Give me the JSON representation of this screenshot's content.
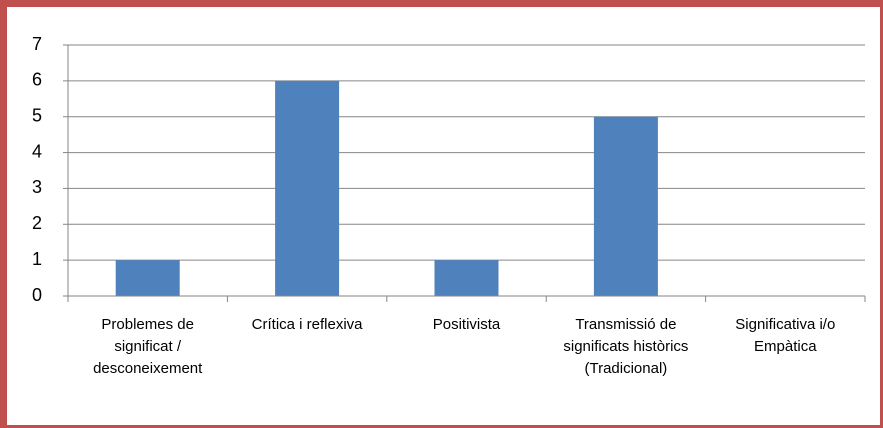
{
  "chart_data": {
    "type": "bar",
    "categories": [
      "Problemes de significat / desconeixement",
      "Crítica i reflexiva",
      "Positivista",
      "Transmissió de significats històrics (Tradicional)",
      "Significativa i/o Empàtica"
    ],
    "values": [
      1,
      6,
      1,
      5,
      0
    ],
    "color": "#4f81bd",
    "ylim": [
      0,
      7
    ],
    "yticks": [
      0,
      1,
      2,
      3,
      4,
      5,
      6,
      7
    ],
    "grid": true
  }
}
